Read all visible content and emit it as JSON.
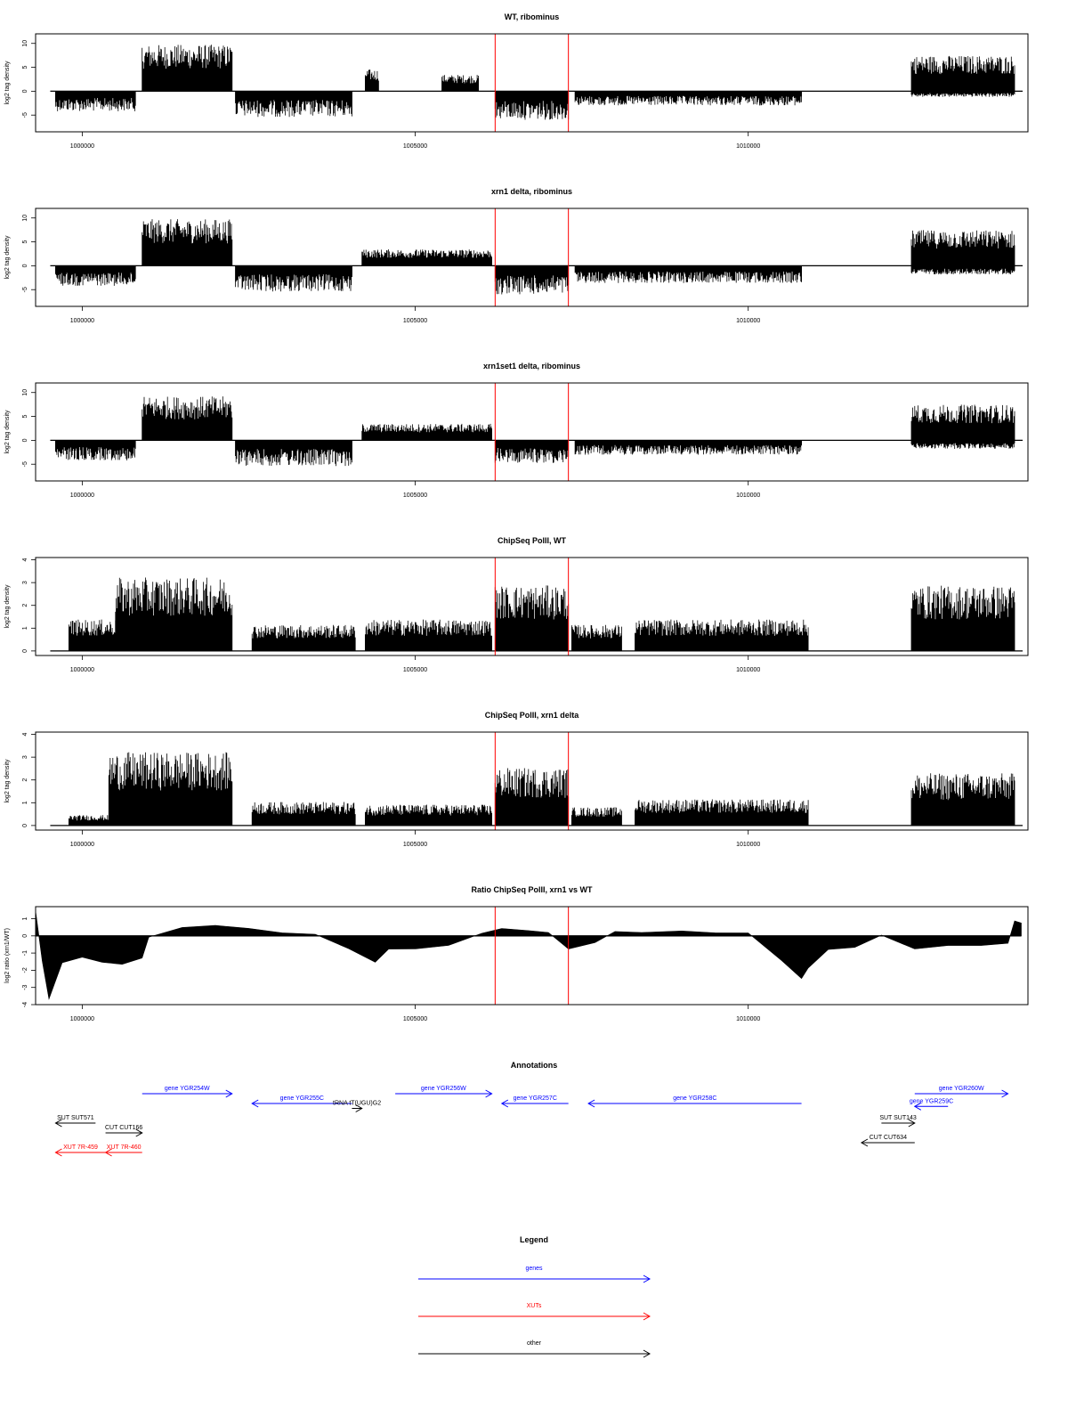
{
  "chart_data": [
    {
      "type": "bar",
      "title": "WT, ribominus",
      "ylabel": "log2 tag density",
      "xlim": [
        999300,
        1014200
      ],
      "ylim": [
        -8.5,
        12
      ],
      "yticks": [
        -5,
        0,
        5,
        10
      ],
      "xticks": [
        1000000,
        1005000,
        1010000
      ],
      "xtick_labels": [
        "1000000",
        "1005000",
        "1010000"
      ],
      "vlines": [
        1006200,
        1007300
      ],
      "segments": [
        {
          "x": [
            999600,
            1000800
          ],
          "y": [
            0,
            -3.5
          ],
          "note": "minus strand"
        },
        {
          "x": [
            1000900,
            1002250
          ],
          "y": [
            8.5,
            0
          ]
        },
        {
          "x": [
            1002300,
            1004050
          ],
          "y": [
            0,
            -4.5
          ]
        },
        {
          "x": [
            1004250,
            1004450
          ],
          "y": [
            4,
            0
          ]
        },
        {
          "x": [
            1005400,
            1005950
          ],
          "y": [
            3,
            0
          ]
        },
        {
          "x": [
            1006200,
            1007300
          ],
          "y": [
            0,
            -5
          ]
        },
        {
          "x": [
            1007400,
            1010800
          ],
          "y": [
            0,
            -2.5
          ]
        },
        {
          "x": [
            1012450,
            1014000
          ],
          "y": [
            6.5,
            -1
          ]
        }
      ]
    },
    {
      "type": "bar",
      "title": "xrn1 delta, ribominus",
      "ylabel": "log2 tag density",
      "xlim": [
        999300,
        1014200
      ],
      "ylim": [
        -8.5,
        12
      ],
      "yticks": [
        -5,
        0,
        5,
        10
      ],
      "xticks": [
        1000000,
        1005000,
        1010000
      ],
      "xtick_labels": [
        "1000000",
        "1005000",
        "1010000"
      ],
      "vlines": [
        1006200,
        1007300
      ],
      "segments": [
        {
          "x": [
            999600,
            1000800
          ],
          "y": [
            0,
            -3.5
          ]
        },
        {
          "x": [
            1000900,
            1002250
          ],
          "y": [
            8.5,
            0
          ]
        },
        {
          "x": [
            1002300,
            1004050
          ],
          "y": [
            0,
            -4.5
          ]
        },
        {
          "x": [
            1004200,
            1006150
          ],
          "y": [
            3,
            0
          ]
        },
        {
          "x": [
            1006200,
            1007300
          ],
          "y": [
            0,
            -5
          ]
        },
        {
          "x": [
            1007400,
            1010800
          ],
          "y": [
            0,
            -3
          ]
        },
        {
          "x": [
            1012450,
            1014000
          ],
          "y": [
            6.5,
            -1.5
          ]
        }
      ]
    },
    {
      "type": "bar",
      "title": "xrn1set1 delta, ribominus",
      "ylabel": "log2 tag density",
      "xlim": [
        999300,
        1014200
      ],
      "ylim": [
        -8.5,
        12
      ],
      "yticks": [
        -5,
        0,
        5,
        10
      ],
      "xticks": [
        1000000,
        1005000,
        1010000
      ],
      "xtick_labels": [
        "1000000",
        "1005000",
        "1010000"
      ],
      "vlines": [
        1006200,
        1007300
      ],
      "segments": [
        {
          "x": [
            999600,
            1000800
          ],
          "y": [
            0,
            -3.5
          ]
        },
        {
          "x": [
            1000900,
            1002250
          ],
          "y": [
            8,
            0
          ]
        },
        {
          "x": [
            1002300,
            1004050
          ],
          "y": [
            0,
            -4.5
          ]
        },
        {
          "x": [
            1004200,
            1006150
          ],
          "y": [
            3,
            0
          ]
        },
        {
          "x": [
            1006200,
            1007300
          ],
          "y": [
            0,
            -4
          ]
        },
        {
          "x": [
            1007400,
            1010800
          ],
          "y": [
            0,
            -2.5
          ]
        },
        {
          "x": [
            1012450,
            1014000
          ],
          "y": [
            6.5,
            -1.5
          ]
        }
      ]
    },
    {
      "type": "bar",
      "title": "ChipSeq PolII, WT",
      "ylabel": "log2 tag density",
      "xlim": [
        999300,
        1014200
      ],
      "ylim": [
        -0.2,
        4.1
      ],
      "yticks": [
        0,
        1,
        2,
        3,
        4
      ],
      "xticks": [
        1000000,
        1005000,
        1010000
      ],
      "xtick_labels": [
        "1000000",
        "1005000",
        "1010000"
      ],
      "vlines": [
        1006200,
        1007300
      ],
      "segments": [
        {
          "x": [
            999800,
            1000500
          ],
          "y": [
            1.2,
            0
          ]
        },
        {
          "x": [
            1000500,
            1002250
          ],
          "y": [
            2.8,
            0
          ]
        },
        {
          "x": [
            1002550,
            1004100
          ],
          "y": [
            1.0,
            0
          ]
        },
        {
          "x": [
            1004250,
            1006150
          ],
          "y": [
            1.2,
            0
          ]
        },
        {
          "x": [
            1006200,
            1007300
          ],
          "y": [
            2.5,
            0
          ]
        },
        {
          "x": [
            1007350,
            1008100
          ],
          "y": [
            1.0,
            0
          ]
        },
        {
          "x": [
            1008300,
            1010900
          ],
          "y": [
            1.2,
            0
          ]
        },
        {
          "x": [
            1012450,
            1014000
          ],
          "y": [
            2.5,
            0
          ]
        }
      ]
    },
    {
      "type": "bar",
      "title": "ChipSeq PolII, xrn1 delta",
      "ylabel": "log2 tag density",
      "xlim": [
        999300,
        1014200
      ],
      "ylim": [
        -0.2,
        4.1
      ],
      "yticks": [
        0,
        1,
        2,
        3,
        4
      ],
      "xticks": [
        1000000,
        1005000,
        1010000
      ],
      "xtick_labels": [
        "1000000",
        "1005000",
        "1010000"
      ],
      "vlines": [
        1006200,
        1007300
      ],
      "segments": [
        {
          "x": [
            999800,
            1000400
          ],
          "y": [
            0.4,
            0
          ]
        },
        {
          "x": [
            1000400,
            1002250
          ],
          "y": [
            2.8,
            0
          ]
        },
        {
          "x": [
            1002550,
            1004100
          ],
          "y": [
            0.9,
            0
          ]
        },
        {
          "x": [
            1004250,
            1006150
          ],
          "y": [
            0.8,
            0
          ]
        },
        {
          "x": [
            1006200,
            1007300
          ],
          "y": [
            2.2,
            0
          ]
        },
        {
          "x": [
            1007350,
            1008100
          ],
          "y": [
            0.7,
            0
          ]
        },
        {
          "x": [
            1008300,
            1010900
          ],
          "y": [
            1.0,
            0
          ]
        },
        {
          "x": [
            1012450,
            1014000
          ],
          "y": [
            2.0,
            0
          ]
        }
      ]
    },
    {
      "type": "area",
      "title": "Ratio ChipSeq PolII, xrn1 vs WT",
      "ylabel": "log2 ratio (xrn1/WT)",
      "xlim": [
        999300,
        1014200
      ],
      "ylim": [
        -4,
        1.7
      ],
      "yticks": [
        -4,
        -3,
        -2,
        -1,
        0,
        1
      ],
      "xticks": [
        1000000,
        1005000,
        1010000
      ],
      "xtick_labels": [
        "1000000",
        "1005000",
        "1010000"
      ],
      "vlines": [
        1006200,
        1007300
      ],
      "x": [
        999300,
        999400,
        999500,
        999700,
        1000000,
        1000300,
        1000600,
        1000900,
        1001000,
        1001500,
        1002000,
        1002500,
        1003000,
        1003500,
        1004000,
        1004400,
        1004600,
        1005000,
        1005500,
        1006000,
        1006300,
        1006700,
        1007000,
        1007300,
        1007700,
        1008000,
        1008400,
        1009000,
        1009500,
        1010000,
        1010500,
        1010800,
        1010900,
        1011200,
        1011600,
        1012000,
        1012500,
        1013000,
        1013500,
        1013900,
        1014000,
        1014100
      ],
      "y": [
        1.5,
        -1.5,
        -3.6,
        -1.5,
        -1.2,
        -1.5,
        -1.6,
        -1.3,
        0,
        0.5,
        0.6,
        0.4,
        0.2,
        0.1,
        -0.8,
        -1.5,
        -0.8,
        -0.7,
        -0.6,
        0.1,
        0.4,
        0.3,
        0.2,
        -0.8,
        -0.4,
        0.3,
        0.2,
        0.3,
        0.2,
        0.1,
        -1.5,
        -2.5,
        -1.8,
        -0.8,
        -0.6,
        0.1,
        -0.8,
        -0.5,
        -0.6,
        -0.4,
        0.9,
        0.8
      ]
    }
  ],
  "annotations": {
    "title": "Annotations",
    "features": [
      {
        "label": "gene YGR254W",
        "start": 1000900,
        "end": 1002250,
        "dir": "right",
        "row": 1,
        "color": "#0000ff"
      },
      {
        "label": "gene YGR255C",
        "start": 1002550,
        "end": 1004050,
        "dir": "left",
        "row": 2,
        "color": "#0000ff"
      },
      {
        "label": "tRNA tT(UGU)G2",
        "start": 1004050,
        "end": 1004200,
        "dir": "right",
        "row": 2.5,
        "color": "#000000"
      },
      {
        "label": "gene YGR256W",
        "start": 1004700,
        "end": 1006150,
        "dir": "right",
        "row": 1,
        "color": "#0000ff"
      },
      {
        "label": "gene YGR257C",
        "start": 1006300,
        "end": 1007300,
        "dir": "left",
        "row": 2,
        "color": "#0000ff"
      },
      {
        "label": "gene YGR258C",
        "start": 1007600,
        "end": 1010800,
        "dir": "left",
        "row": 2,
        "color": "#0000ff"
      },
      {
        "label": "gene YGR259C",
        "start": 1012500,
        "end": 1013000,
        "dir": "left",
        "row": 2.3,
        "color": "#0000ff"
      },
      {
        "label": "gene YGR260W",
        "start": 1012500,
        "end": 1013900,
        "dir": "right",
        "row": 1,
        "color": "#0000ff"
      },
      {
        "label": "SUT SUT571",
        "start": 999600,
        "end": 1000200,
        "dir": "left",
        "row": 4,
        "color": "#000000"
      },
      {
        "label": "CUT CUT166",
        "start": 1000350,
        "end": 1000900,
        "dir": "right",
        "row": 5,
        "color": "#000000"
      },
      {
        "label": "SUT SUT143",
        "start": 1012000,
        "end": 1012500,
        "dir": "right",
        "row": 4,
        "color": "#000000"
      },
      {
        "label": "CUT CUT634",
        "start": 1011700,
        "end": 1012500,
        "dir": "left",
        "row": 6,
        "color": "#000000"
      },
      {
        "label": "XUT 7R-459",
        "start": 999600,
        "end": 1000350,
        "dir": "left",
        "row": 7,
        "color": "#ff0000"
      },
      {
        "label": "XUT 7R-460",
        "start": 1000350,
        "end": 1000900,
        "dir": "left",
        "row": 7,
        "color": "#ff0000"
      }
    ]
  },
  "legend": {
    "title": "Legend",
    "items": [
      {
        "label": "genes",
        "color": "#0000ff"
      },
      {
        "label": "XUTs",
        "color": "#ff0000"
      },
      {
        "label": "other",
        "color": "#000000"
      }
    ]
  }
}
